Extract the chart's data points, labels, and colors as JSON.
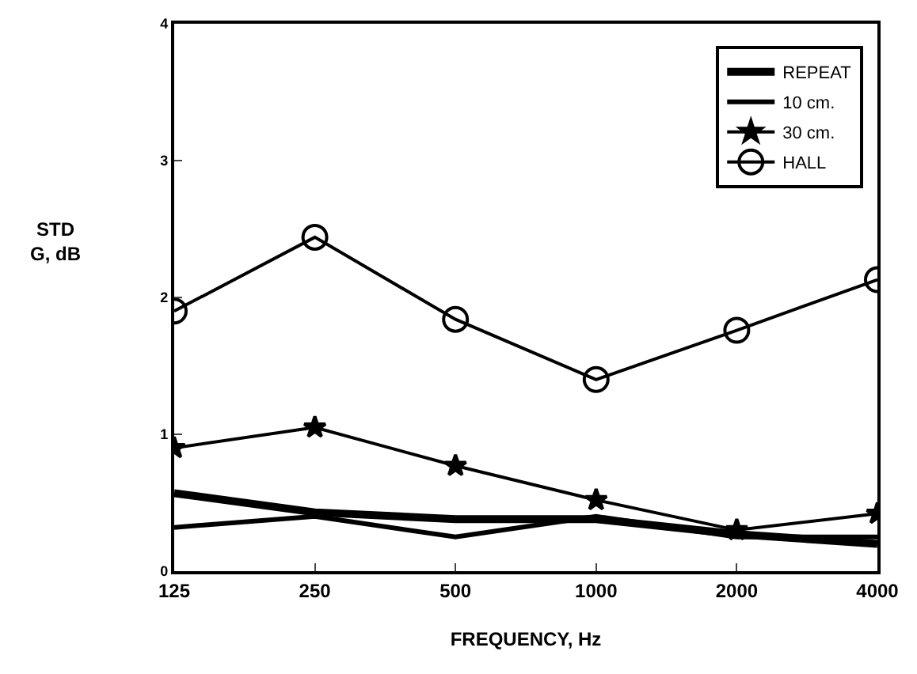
{
  "chart_data": {
    "type": "line",
    "xlabel": "FREQUENCY, Hz",
    "ylabel": "STD\nG, dB",
    "categories": [
      "125",
      "250",
      "500",
      "1000",
      "2000",
      "4000"
    ],
    "series": [
      {
        "name": "REPEAT",
        "color": "#000000",
        "marker": "none",
        "values": [
          0.57,
          0.43,
          0.38,
          0.38,
          0.27,
          0.2
        ]
      },
      {
        "name": "10 cm.",
        "color": "#000000",
        "marker": "none",
        "values": [
          0.32,
          0.4,
          0.25,
          0.4,
          0.25,
          0.25
        ]
      },
      {
        "name": "30 cm.",
        "color": "#000000",
        "marker": "star",
        "values": [
          0.9,
          1.05,
          0.77,
          0.52,
          0.3,
          0.42
        ]
      },
      {
        "name": "HALL",
        "color": "#000000",
        "marker": "circle",
        "values": [
          1.9,
          2.44,
          1.84,
          1.4,
          1.76,
          2.13
        ]
      }
    ],
    "ylim": [
      0,
      4
    ],
    "yticks": [
      0,
      1,
      2,
      3,
      4
    ],
    "grid": false,
    "legend": "top right",
    "line_style": "solid"
  }
}
